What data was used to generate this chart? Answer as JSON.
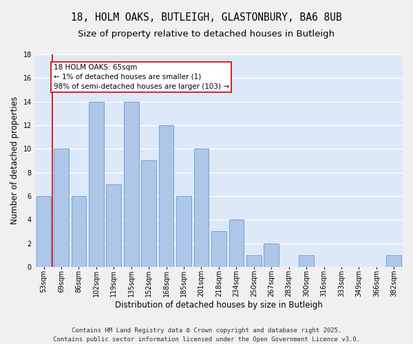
{
  "title1": "18, HOLM OAKS, BUTLEIGH, GLASTONBURY, BA6 8UB",
  "title2": "Size of property relative to detached houses in Butleigh",
  "xlabel": "Distribution of detached houses by size in Butleigh",
  "ylabel": "Number of detached properties",
  "categories": [
    "53sqm",
    "69sqm",
    "86sqm",
    "102sqm",
    "119sqm",
    "135sqm",
    "152sqm",
    "168sqm",
    "185sqm",
    "201sqm",
    "218sqm",
    "234sqm",
    "250sqm",
    "267sqm",
    "283sqm",
    "300sqm",
    "316sqm",
    "333sqm",
    "349sqm",
    "366sqm",
    "382sqm"
  ],
  "values": [
    6,
    10,
    6,
    14,
    7,
    14,
    9,
    12,
    6,
    10,
    3,
    4,
    1,
    2,
    0,
    1,
    0,
    0,
    0,
    0,
    1
  ],
  "bar_color": "#aec6e8",
  "bar_edge_color": "#6699cc",
  "red_line_x": 0.5,
  "annotation_text": "18 HOLM OAKS: 65sqm\n← 1% of detached houses are smaller (1)\n98% of semi-detached houses are larger (103) →",
  "annotation_box_color": "#ffffff",
  "annotation_box_edge": "#cc0000",
  "red_line_color": "#cc0000",
  "ylim": [
    0,
    18
  ],
  "yticks": [
    0,
    2,
    4,
    6,
    8,
    10,
    12,
    14,
    16,
    18
  ],
  "bg_color": "#dde8f8",
  "grid_color": "#ffffff",
  "fig_bg_color": "#f0f0f0",
  "footer": "Contains HM Land Registry data © Crown copyright and database right 2025.\nContains public sector information licensed under the Open Government Licence v3.0.",
  "title_fontsize": 10.5,
  "subtitle_fontsize": 9.5,
  "axis_label_fontsize": 8.5,
  "tick_fontsize": 7,
  "footer_fontsize": 6.5,
  "annotation_fontsize": 7.5
}
